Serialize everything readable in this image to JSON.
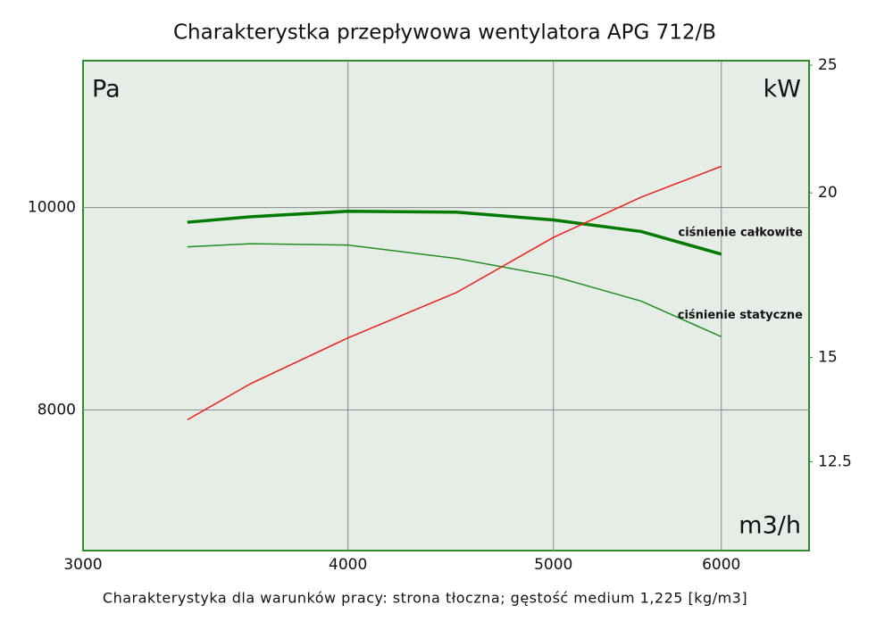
{
  "chart_data": {
    "type": "line",
    "title": "Charakterystka przepływowa wentylatora APG 712/B",
    "footnote": "Charakterystyka dla warunków pracy: strona tłoczna; gęstość medium 1,225 [kg/m3]",
    "y_unit": "Pa",
    "y2_unit": "kW",
    "x_unit": "m3/h",
    "xscale": "log",
    "yscale": "log",
    "y2scale": "log",
    "xlim": [
      3000,
      6600
    ],
    "xticks": [
      3000,
      4000,
      5000,
      6000
    ],
    "ylim": [
      6850,
      11760
    ],
    "yticks": [
      8000,
      10000
    ],
    "y2lim": [
      10.7,
      25.2
    ],
    "y2ticks": [
      12.5,
      15,
      20,
      25
    ],
    "grid": true,
    "x": [
      3360,
      3600,
      4000,
      4500,
      5000,
      5500,
      6000
    ],
    "series": [
      {
        "name": "ciśnienie całkowite",
        "color": "#007a00",
        "line_width": 3.5,
        "values": [
          9840,
          9900,
          9960,
          9950,
          9865,
          9740,
          9500
        ]
      },
      {
        "name": "ciśnienie statyczne",
        "color": "#1f8f1f",
        "line_width": 1.5,
        "values": [
          9577,
          9610,
          9596,
          9455,
          9271,
          9020,
          8673
        ]
      },
      {
        "color": "#e82018",
        "line_width": 1.5,
        "axis": "y2",
        "values": [
          13.45,
          14.33,
          15.52,
          16.8,
          18.5,
          19.85,
          20.95
        ]
      }
    ]
  }
}
